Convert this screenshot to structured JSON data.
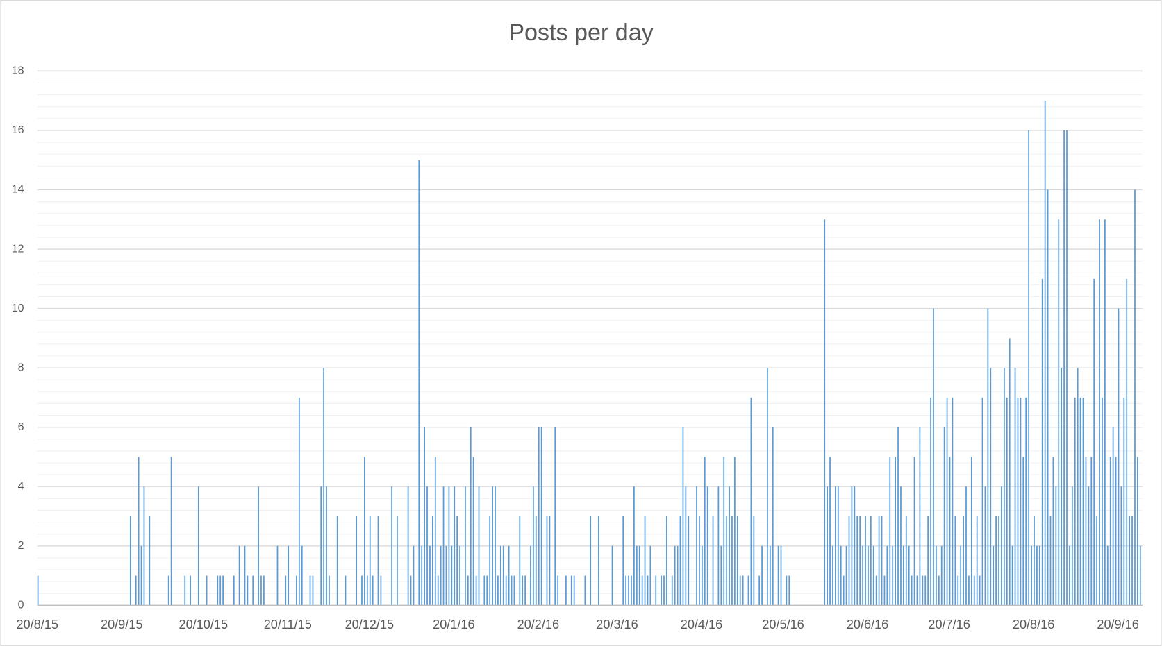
{
  "chart_data": {
    "type": "bar",
    "title": "Posts per day",
    "categories": [
      "20/8/15",
      null,
      null,
      null,
      null,
      null,
      null,
      null,
      null,
      null,
      null,
      null,
      null,
      null,
      null,
      null,
      null,
      null,
      null,
      null,
      null,
      null,
      null,
      null,
      null,
      null,
      null,
      null,
      null,
      null,
      null,
      "20/9/15",
      null,
      null,
      null,
      null,
      null,
      null,
      null,
      null,
      null,
      null,
      null,
      null,
      null,
      null,
      null,
      null,
      null,
      null,
      null,
      null,
      null,
      null,
      null,
      null,
      null,
      null,
      null,
      null,
      null,
      "20/10/15",
      null,
      null,
      null,
      null,
      null,
      null,
      null,
      null,
      null,
      null,
      null,
      null,
      null,
      null,
      null,
      null,
      null,
      null,
      null,
      null,
      null,
      null,
      null,
      null,
      null,
      null,
      null,
      null,
      null,
      null,
      "20/11/15",
      null,
      null,
      null,
      null,
      null,
      null,
      null,
      null,
      null,
      null,
      null,
      null,
      null,
      null,
      null,
      null,
      null,
      null,
      null,
      null,
      null,
      null,
      null,
      null,
      null,
      null,
      null,
      null,
      null,
      "20/12/15",
      null,
      null,
      null,
      null,
      null,
      null,
      null,
      null,
      null,
      null,
      null,
      null,
      null,
      null,
      null,
      null,
      null,
      null,
      null,
      null,
      null,
      null,
      null,
      null,
      null,
      null,
      null,
      null,
      null,
      null,
      "20/1/16",
      null,
      null,
      null,
      null,
      null,
      null,
      null,
      null,
      null,
      null,
      null,
      null,
      null,
      null,
      null,
      null,
      null,
      null,
      null,
      null,
      null,
      null,
      null,
      null,
      null,
      null,
      null,
      null,
      null,
      null,
      "20/2/16",
      null,
      null,
      null,
      null,
      null,
      null,
      null,
      null,
      null,
      null,
      null,
      null,
      null,
      null,
      null,
      null,
      null,
      null,
      null,
      null,
      null,
      null,
      null,
      null,
      null,
      null,
      null,
      null,
      "20/3/16",
      null,
      null,
      null,
      null,
      null,
      null,
      null,
      null,
      null,
      null,
      null,
      null,
      null,
      null,
      null,
      null,
      null,
      null,
      null,
      null,
      null,
      null,
      null,
      null,
      null,
      null,
      null,
      null,
      null,
      null,
      "20/4/16",
      null,
      null,
      null,
      null,
      null,
      null,
      null,
      null,
      null,
      null,
      null,
      null,
      null,
      null,
      null,
      null,
      null,
      null,
      null,
      null,
      null,
      null,
      null,
      null,
      null,
      null,
      null,
      null,
      null,
      "20/5/16",
      null,
      null,
      null,
      null,
      null,
      null,
      null,
      null,
      null,
      null,
      null,
      null,
      null,
      null,
      null,
      null,
      null,
      null,
      null,
      null,
      null,
      null,
      null,
      null,
      null,
      null,
      null,
      null,
      null,
      null,
      "20/6/16",
      null,
      null,
      null,
      null,
      null,
      null,
      null,
      null,
      null,
      null,
      null,
      null,
      null,
      null,
      null,
      null,
      null,
      null,
      null,
      null,
      null,
      null,
      null,
      null,
      null,
      null,
      null,
      null,
      null,
      "20/7/16",
      null,
      null,
      null,
      null,
      null,
      null,
      null,
      null,
      null,
      null,
      null,
      null,
      null,
      null,
      null,
      null,
      null,
      null,
      null,
      null,
      null,
      null,
      null,
      null,
      null,
      null,
      null,
      null,
      null,
      null,
      "20/8/16",
      null,
      null,
      null,
      null,
      null,
      null,
      null,
      null,
      null,
      null,
      null,
      null,
      null,
      null,
      null,
      null,
      null,
      null,
      null,
      null,
      null,
      null,
      null,
      null,
      null,
      null,
      null,
      null,
      null,
      null,
      "20/9/16",
      null,
      null,
      null,
      null,
      null,
      null,
      null,
      null
    ],
    "values": [
      1,
      0,
      0,
      0,
      0,
      0,
      0,
      0,
      0,
      0,
      0,
      0,
      0,
      0,
      0,
      0,
      0,
      0,
      0,
      0,
      0,
      0,
      0,
      0,
      0,
      0,
      0,
      0,
      0,
      0,
      0,
      0,
      0,
      0,
      3,
      0,
      1,
      5,
      2,
      4,
      0,
      3,
      0,
      0,
      0,
      0,
      0,
      0,
      1,
      5,
      0,
      0,
      0,
      0,
      1,
      0,
      1,
      0,
      0,
      4,
      0,
      0,
      1,
      0,
      0,
      0,
      1,
      1,
      1,
      0,
      0,
      0,
      1,
      0,
      2,
      0,
      2,
      1,
      0,
      1,
      0,
      4,
      1,
      1,
      0,
      0,
      0,
      0,
      2,
      0,
      0,
      1,
      2,
      0,
      0,
      1,
      7,
      2,
      0,
      0,
      1,
      1,
      0,
      0,
      4,
      8,
      4,
      1,
      0,
      0,
      3,
      0,
      0,
      1,
      0,
      0,
      0,
      3,
      0,
      1,
      5,
      1,
      3,
      1,
      0,
      3,
      1,
      0,
      0,
      0,
      4,
      0,
      3,
      0,
      0,
      0,
      4,
      1,
      2,
      0,
      15,
      2,
      6,
      4,
      2,
      3,
      5,
      1,
      2,
      4,
      2,
      4,
      2,
      4,
      3,
      2,
      0,
      4,
      1,
      6,
      5,
      1,
      4,
      0,
      1,
      1,
      3,
      4,
      4,
      1,
      2,
      2,
      1,
      2,
      1,
      1,
      0,
      3,
      1,
      1,
      0,
      2,
      4,
      3,
      6,
      6,
      0,
      3,
      3,
      0,
      6,
      1,
      0,
      0,
      1,
      0,
      1,
      1,
      0,
      0,
      0,
      1,
      0,
      3,
      0,
      0,
      3,
      0,
      0,
      0,
      0,
      2,
      0,
      0,
      0,
      3,
      1,
      1,
      1,
      4,
      2,
      2,
      1,
      3,
      1,
      2,
      0,
      1,
      0,
      1,
      1,
      3,
      0,
      1,
      2,
      2,
      3,
      6,
      4,
      3,
      0,
      0,
      4,
      3,
      2,
      5,
      4,
      0,
      3,
      0,
      4,
      2,
      5,
      3,
      4,
      3,
      5,
      3,
      1,
      1,
      0,
      1,
      7,
      3,
      0,
      1,
      2,
      0,
      8,
      2,
      6,
      0,
      2,
      2,
      0,
      1,
      1,
      0,
      0,
      0,
      0,
      0,
      0,
      0,
      0,
      0,
      0,
      0,
      0,
      13,
      4,
      5,
      2,
      4,
      4,
      2,
      1,
      2,
      3,
      4,
      4,
      3,
      3,
      2,
      3,
      2,
      3,
      2,
      1,
      3,
      3,
      1,
      2,
      5,
      2,
      5,
      6,
      4,
      2,
      3,
      2,
      1,
      5,
      1,
      6,
      1,
      1,
      3,
      7,
      10,
      2,
      1,
      2,
      6,
      7,
      5,
      7,
      3,
      1,
      2,
      3,
      4,
      1,
      5,
      1,
      3,
      1,
      7,
      4,
      10,
      8,
      2,
      3,
      3,
      4,
      8,
      7,
      9,
      2,
      8,
      7,
      7,
      5,
      7,
      16,
      2,
      3,
      2,
      2,
      11,
      17,
      14,
      3,
      5,
      4,
      13,
      8,
      16,
      16,
      2,
      4,
      7,
      8,
      7,
      7,
      5,
      4,
      5,
      11,
      3,
      13,
      7,
      13,
      2,
      5,
      6,
      5,
      10,
      4,
      7,
      11,
      3,
      3,
      14,
      5,
      2
    ],
    "color": "#5b9bd5",
    "ylim": [
      0,
      18
    ],
    "yticks": [
      0,
      2,
      4,
      6,
      8,
      10,
      12,
      14,
      16,
      18
    ],
    "grid": true
  }
}
